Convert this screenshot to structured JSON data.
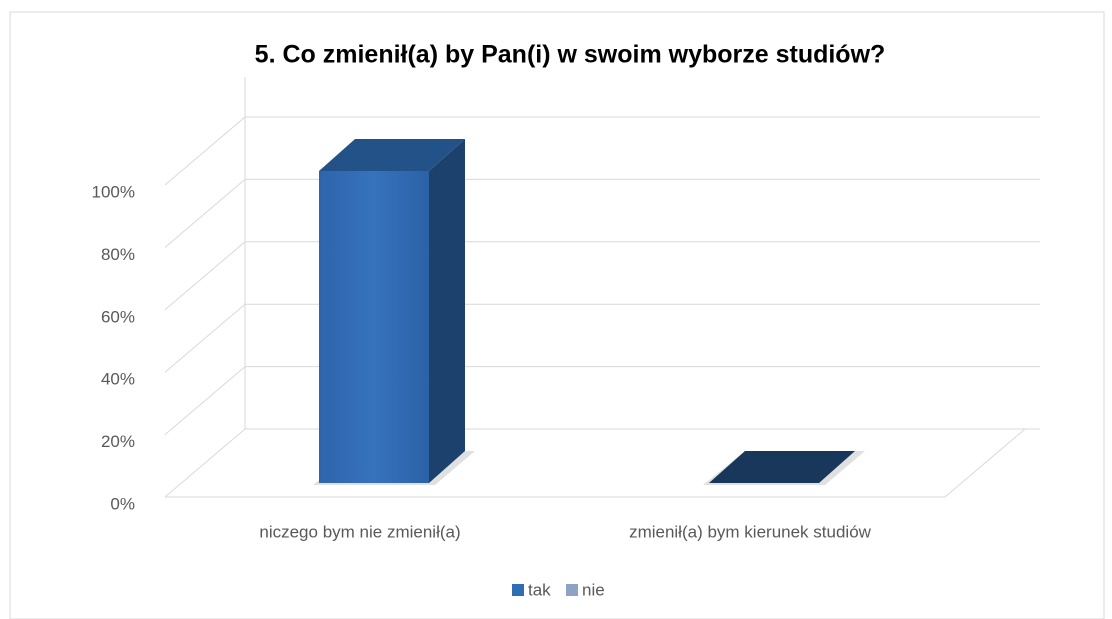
{
  "chart_data": {
    "type": "bar3d",
    "title": "5. Co zmienił(a) by Pan(i) w swoim wyborze studiów?",
    "categories": [
      "niczego bym nie zmienił(a)",
      "zmienił(a) bym kierunek studiów"
    ],
    "series": [
      {
        "name": "tak",
        "color": "#2f6db5",
        "values": [
          100,
          0
        ]
      },
      {
        "name": "nie",
        "color": "#8ea3c4",
        "values": [
          null,
          null
        ]
      }
    ],
    "ylim": [
      0,
      100
    ],
    "yticks": [
      {
        "value": 0,
        "label": "0%"
      },
      {
        "value": 20,
        "label": "20%"
      },
      {
        "value": 40,
        "label": "40%"
      },
      {
        "value": 60,
        "label": "60%"
      },
      {
        "value": 80,
        "label": "80%"
      },
      {
        "value": 100,
        "label": "100%"
      }
    ],
    "grid": true,
    "legend": "bottom"
  }
}
